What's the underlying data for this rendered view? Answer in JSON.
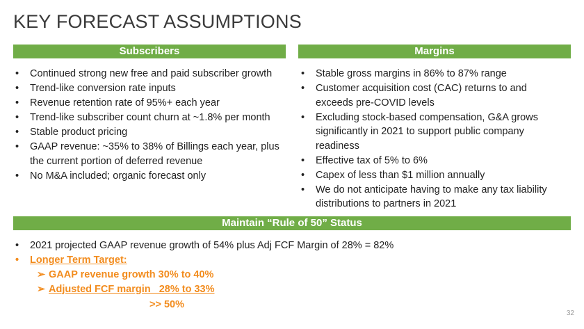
{
  "title": "KEY FORECAST ASSUMPTIONS",
  "subscribers": {
    "header": "Subscribers",
    "bullets": [
      "Continued strong new free and paid subscriber growth",
      "Trend-like conversion rate inputs",
      "Revenue retention rate of 95%+ each year",
      "Trend-like subscriber count churn at ~1.8% per month",
      "Stable product pricing",
      "GAAP revenue: ~35% to 38% of Billings each year, plus the current portion of deferred revenue",
      "No M&A included; organic forecast only"
    ]
  },
  "margins": {
    "header": "Margins",
    "bullets": [
      "Stable gross margins in 86% to 87% range",
      "Customer acquisition cost (CAC) returns to and exceeds pre-COVID levels",
      "Excluding stock-based compensation, G&A grows significantly in 2021 to support public company readiness",
      "Effective tax of 5% to 6%",
      "Capex of less than $1 million annually",
      "We do not anticipate having to make any tax liability distributions to partners in 2021"
    ]
  },
  "rule50": {
    "header": "Maintain “Rule of 50” Status",
    "bullet1": "2021 projected GAAP revenue growth of 54% plus Adj FCF Margin of 28% = 82%",
    "target_label": "Longer Term Target:",
    "sub_items": [
      "GAAP revenue growth 30% to 40%",
      "Adjusted FCF margin   28% to 33%"
    ],
    "total": ">> 50%"
  },
  "page_number": "32",
  "colors": {
    "header_bar": "#70ad47",
    "accent": "#f28c1e"
  }
}
